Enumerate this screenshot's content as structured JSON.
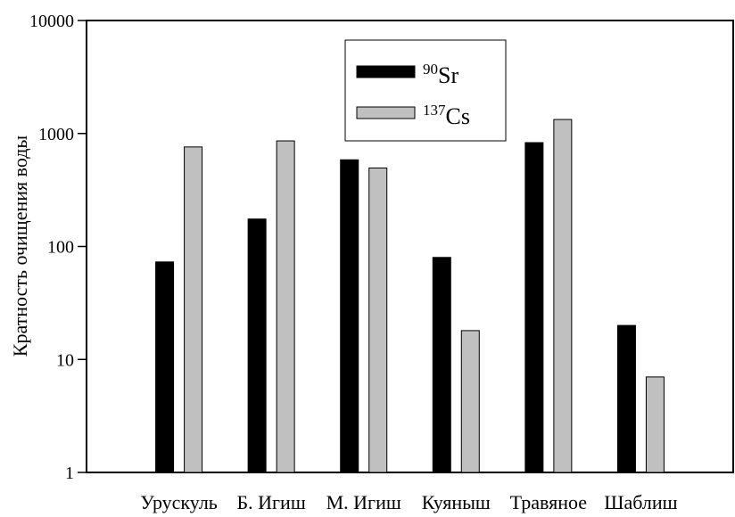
{
  "chart_data": {
    "type": "bar",
    "title": "",
    "xlabel": "",
    "ylabel": "Кратность очищения воды",
    "yscale": "log",
    "ylim": [
      1,
      10000
    ],
    "yticks": [
      "1",
      "10",
      "100",
      "1000",
      "10000"
    ],
    "categories": [
      "Урускуль",
      "Б. Игиш",
      "М. Игиш",
      "Куяныш",
      "Травяное",
      "Шаблиш"
    ],
    "series": [
      {
        "name": "90Sr",
        "values": [
          73,
          175,
          585,
          80,
          830,
          20
        ],
        "color": "#000000"
      },
      {
        "name": "137Cs",
        "values": [
          760,
          860,
          495,
          18,
          1330,
          7
        ],
        "color": "#c0c0c0"
      }
    ],
    "legend": {
      "position": "top-center",
      "entries": [
        {
          "sup": "90",
          "base": "Sr"
        },
        {
          "sup": "137",
          "base": "Cs"
        }
      ]
    },
    "grid": false
  }
}
